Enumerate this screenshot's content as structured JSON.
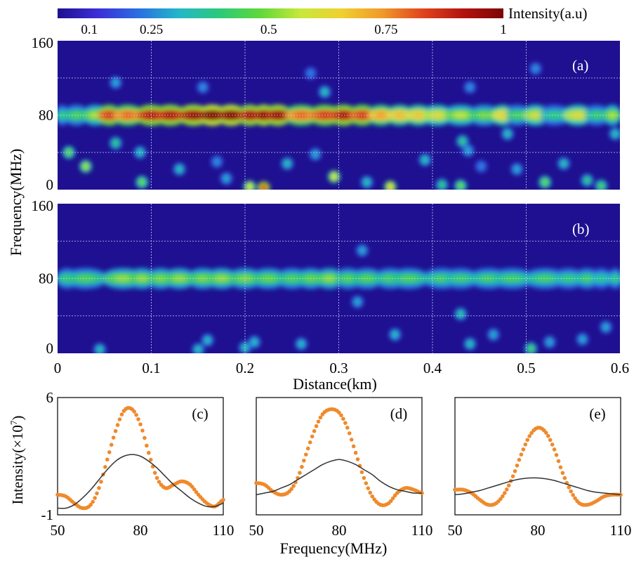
{
  "colors": {
    "heat_bg": "#1e1090",
    "heat_stops": [
      "#1e1090",
      "#3b2fd8",
      "#2a6fe0",
      "#22b8c8",
      "#2cc97a",
      "#5fd83a",
      "#c8e83a",
      "#f0d030",
      "#f09a2a",
      "#e0451e",
      "#b4120e",
      "#7a0606"
    ],
    "orange_dots": "#ef8a2c",
    "gray_line": "#333333",
    "grid": "#c9c9ff"
  },
  "colorbar": {
    "label": "Intensity(a.u)",
    "ticks": [
      "0.1",
      "0.25",
      "0.5",
      "0.75",
      "1"
    ],
    "tick_values": [
      0.1,
      0.25,
      0.5,
      0.75,
      1.0
    ]
  },
  "shared": {
    "heatmap_ylabel": "Frequency(MHz)",
    "heatmap_xlabel": "Distance(km)",
    "line_ylabel": "Intensity(×10",
    "line_ylabel_exp": "7",
    "line_ylabel_close": ")",
    "line_xlabel": "Frequency(MHz)"
  },
  "chart_data": [
    {
      "id": "a",
      "type": "heatmap",
      "panel_label": "(a)",
      "xlim": [
        0,
        0.6
      ],
      "ylim": [
        0,
        160
      ],
      "xticks": [
        "0",
        "0.1",
        "0.2",
        "0.3",
        "0.4",
        "0.5",
        "0.6"
      ],
      "yticks": [
        "0",
        "80",
        "160"
      ],
      "grid": true,
      "main_band": {
        "center_freq": 80,
        "segments": [
          {
            "x": 0.005,
            "level": 0.3
          },
          {
            "x": 0.02,
            "level": 0.35
          },
          {
            "x": 0.04,
            "level": 0.45
          },
          {
            "x": 0.055,
            "level": 0.78
          },
          {
            "x": 0.075,
            "level": 0.72
          },
          {
            "x": 0.1,
            "level": 0.85
          },
          {
            "x": 0.12,
            "level": 0.86
          },
          {
            "x": 0.145,
            "level": 0.9
          },
          {
            "x": 0.165,
            "level": 0.97
          },
          {
            "x": 0.185,
            "level": 0.95
          },
          {
            "x": 0.205,
            "level": 0.88
          },
          {
            "x": 0.22,
            "level": 0.92
          },
          {
            "x": 0.235,
            "level": 0.9
          },
          {
            "x": 0.26,
            "level": 0.72
          },
          {
            "x": 0.285,
            "level": 0.78
          },
          {
            "x": 0.305,
            "level": 0.86
          },
          {
            "x": 0.325,
            "level": 0.78
          },
          {
            "x": 0.345,
            "level": 0.65
          },
          {
            "x": 0.365,
            "level": 0.6
          },
          {
            "x": 0.385,
            "level": 0.58
          },
          {
            "x": 0.405,
            "level": 0.52
          },
          {
            "x": 0.43,
            "level": 0.46
          },
          {
            "x": 0.455,
            "level": 0.4
          },
          {
            "x": 0.475,
            "level": 0.55
          },
          {
            "x": 0.49,
            "level": 0.35
          },
          {
            "x": 0.51,
            "level": 0.5
          },
          {
            "x": 0.53,
            "level": 0.3
          },
          {
            "x": 0.555,
            "level": 0.52
          },
          {
            "x": 0.575,
            "level": 0.32
          },
          {
            "x": 0.592,
            "level": 0.45
          }
        ],
        "band_half_width": 6
      },
      "spots": [
        {
          "x": 0.012,
          "y": 40,
          "level": 0.45
        },
        {
          "x": 0.03,
          "y": 25,
          "level": 0.5
        },
        {
          "x": 0.062,
          "y": 50,
          "level": 0.35
        },
        {
          "x": 0.088,
          "y": 40,
          "level": 0.3
        },
        {
          "x": 0.09,
          "y": 8,
          "level": 0.45
        },
        {
          "x": 0.13,
          "y": 22,
          "level": 0.3
        },
        {
          "x": 0.17,
          "y": 30,
          "level": 0.22
        },
        {
          "x": 0.18,
          "y": 12,
          "level": 0.25
        },
        {
          "x": 0.205,
          "y": 3,
          "level": 0.55
        },
        {
          "x": 0.22,
          "y": 2,
          "level": 0.8
        },
        {
          "x": 0.245,
          "y": 28,
          "level": 0.3
        },
        {
          "x": 0.275,
          "y": 38,
          "level": 0.25
        },
        {
          "x": 0.295,
          "y": 14,
          "level": 0.55
        },
        {
          "x": 0.285,
          "y": 105,
          "level": 0.3
        },
        {
          "x": 0.33,
          "y": 8,
          "level": 0.3
        },
        {
          "x": 0.355,
          "y": 3,
          "level": 0.6
        },
        {
          "x": 0.392,
          "y": 32,
          "level": 0.3
        },
        {
          "x": 0.41,
          "y": 5,
          "level": 0.35
        },
        {
          "x": 0.432,
          "y": 52,
          "level": 0.35
        },
        {
          "x": 0.438,
          "y": 42,
          "level": 0.25
        },
        {
          "x": 0.452,
          "y": 25,
          "level": 0.2
        },
        {
          "x": 0.48,
          "y": 60,
          "level": 0.3
        },
        {
          "x": 0.49,
          "y": 22,
          "level": 0.25
        },
        {
          "x": 0.52,
          "y": 8,
          "level": 0.45
        },
        {
          "x": 0.54,
          "y": 28,
          "level": 0.3
        },
        {
          "x": 0.565,
          "y": 10,
          "level": 0.35
        },
        {
          "x": 0.58,
          "y": 4,
          "level": 0.4
        },
        {
          "x": 0.062,
          "y": 115,
          "level": 0.25
        },
        {
          "x": 0.155,
          "y": 110,
          "level": 0.22
        },
        {
          "x": 0.27,
          "y": 125,
          "level": 0.2
        },
        {
          "x": 0.44,
          "y": 110,
          "level": 0.22
        },
        {
          "x": 0.51,
          "y": 130,
          "level": 0.22
        },
        {
          "x": 0.43,
          "y": 4,
          "level": 0.45
        },
        {
          "x": 0.595,
          "y": 60,
          "level": 0.3
        }
      ]
    },
    {
      "id": "b",
      "type": "heatmap",
      "panel_label": "(b)",
      "xlim": [
        0,
        0.6
      ],
      "ylim": [
        0,
        160
      ],
      "xticks": [
        "0",
        "0.1",
        "0.2",
        "0.3",
        "0.4",
        "0.5",
        "0.6"
      ],
      "yticks": [
        "0",
        "80",
        "160"
      ],
      "grid": true,
      "main_band": {
        "center_freq": 80,
        "segments": [
          {
            "x": 0.01,
            "level": 0.32
          },
          {
            "x": 0.03,
            "level": 0.35
          },
          {
            "x": 0.07,
            "level": 0.42
          },
          {
            "x": 0.09,
            "level": 0.42
          },
          {
            "x": 0.11,
            "level": 0.4
          },
          {
            "x": 0.13,
            "level": 0.42
          },
          {
            "x": 0.155,
            "level": 0.4
          },
          {
            "x": 0.175,
            "level": 0.42
          },
          {
            "x": 0.2,
            "level": 0.4
          },
          {
            "x": 0.225,
            "level": 0.38
          },
          {
            "x": 0.25,
            "level": 0.35
          },
          {
            "x": 0.27,
            "level": 0.38
          },
          {
            "x": 0.29,
            "level": 0.42
          },
          {
            "x": 0.31,
            "level": 0.36
          },
          {
            "x": 0.33,
            "level": 0.36
          },
          {
            "x": 0.355,
            "level": 0.34
          },
          {
            "x": 0.375,
            "level": 0.35
          },
          {
            "x": 0.41,
            "level": 0.33
          },
          {
            "x": 0.43,
            "level": 0.32
          },
          {
            "x": 0.46,
            "level": 0.33
          },
          {
            "x": 0.485,
            "level": 0.33
          },
          {
            "x": 0.52,
            "level": 0.33
          },
          {
            "x": 0.545,
            "level": 0.3
          },
          {
            "x": 0.565,
            "level": 0.33
          },
          {
            "x": 0.58,
            "level": 0.28
          },
          {
            "x": 0.595,
            "level": 0.3
          }
        ],
        "band_half_width": 6
      },
      "spots": [
        {
          "x": 0.045,
          "y": 4,
          "level": 0.3
        },
        {
          "x": 0.15,
          "y": 4,
          "level": 0.3
        },
        {
          "x": 0.16,
          "y": 14,
          "level": 0.28
        },
        {
          "x": 0.2,
          "y": 6,
          "level": 0.3
        },
        {
          "x": 0.21,
          "y": 12,
          "level": 0.28
        },
        {
          "x": 0.26,
          "y": 10,
          "level": 0.28
        },
        {
          "x": 0.32,
          "y": 55,
          "level": 0.25
        },
        {
          "x": 0.36,
          "y": 20,
          "level": 0.28
        },
        {
          "x": 0.43,
          "y": 42,
          "level": 0.32
        },
        {
          "x": 0.44,
          "y": 10,
          "level": 0.3
        },
        {
          "x": 0.465,
          "y": 20,
          "level": 0.25
        },
        {
          "x": 0.505,
          "y": 5,
          "level": 0.4
        },
        {
          "x": 0.525,
          "y": 12,
          "level": 0.25
        },
        {
          "x": 0.56,
          "y": 15,
          "level": 0.25
        },
        {
          "x": 0.585,
          "y": 28,
          "level": 0.25
        },
        {
          "x": 0.325,
          "y": 110,
          "level": 0.25
        }
      ]
    },
    {
      "id": "c",
      "type": "line",
      "panel_label": "(c)",
      "xlim": [
        50,
        110
      ],
      "ylim": [
        -1,
        6
      ],
      "xticks": [
        "50",
        "80",
        "110"
      ],
      "yticks": [
        "-1",
        "6"
      ],
      "show_yticks": true,
      "series": [
        {
          "style": "dots",
          "x": [
            50,
            53,
            56,
            59,
            62,
            65,
            68,
            71,
            74,
            77,
            80,
            83,
            86,
            89,
            92,
            95,
            98,
            101,
            104,
            107,
            110
          ],
          "y": [
            0.2,
            0.1,
            -0.3,
            -0.6,
            -0.4,
            0.6,
            2.3,
            4.0,
            5.2,
            5.3,
            4.4,
            2.7,
            1.2,
            0.6,
            0.8,
            1.0,
            0.8,
            0.2,
            -0.3,
            -0.5,
            -0.1
          ]
        },
        {
          "style": "line",
          "x": [
            50,
            53,
            56,
            59,
            62,
            65,
            68,
            71,
            74,
            77,
            80,
            83,
            86,
            89,
            92,
            95,
            98,
            101,
            104,
            107,
            110
          ],
          "y": [
            -0.6,
            -0.6,
            -0.4,
            0.0,
            0.5,
            1.1,
            1.7,
            2.2,
            2.5,
            2.6,
            2.5,
            2.2,
            1.8,
            1.3,
            0.8,
            0.4,
            0.0,
            -0.3,
            -0.5,
            -0.5,
            -0.3
          ]
        }
      ]
    },
    {
      "id": "d",
      "type": "line",
      "panel_label": "(d)",
      "xlim": [
        50,
        110
      ],
      "ylim": [
        -1,
        6
      ],
      "xticks": [
        "50",
        "80",
        "110"
      ],
      "yticks": [],
      "show_yticks": false,
      "series": [
        {
          "style": "dots",
          "x": [
            50,
            53,
            56,
            59,
            62,
            65,
            68,
            71,
            74,
            77,
            80,
            83,
            86,
            89,
            92,
            95,
            98,
            101,
            104,
            107,
            110
          ],
          "y": [
            0.9,
            0.8,
            0.4,
            0.2,
            0.4,
            1.2,
            2.6,
            4.0,
            5.0,
            5.3,
            5.1,
            4.2,
            2.7,
            1.2,
            0.1,
            -0.4,
            -0.3,
            0.3,
            0.6,
            0.5,
            0.3
          ]
        },
        {
          "style": "line",
          "x": [
            50,
            53,
            56,
            59,
            62,
            65,
            68,
            71,
            74,
            77,
            80,
            83,
            86,
            89,
            92,
            95,
            98,
            101,
            104,
            107,
            110
          ],
          "y": [
            0.2,
            0.3,
            0.4,
            0.6,
            0.8,
            1.1,
            1.4,
            1.7,
            2.0,
            2.2,
            2.3,
            2.2,
            2.0,
            1.7,
            1.4,
            1.0,
            0.7,
            0.5,
            0.4,
            0.3,
            0.3
          ]
        }
      ]
    },
    {
      "id": "e",
      "type": "line",
      "panel_label": "(e)",
      "xlim": [
        50,
        110
      ],
      "ylim": [
        -1,
        6
      ],
      "xticks": [
        "50",
        "80",
        "110"
      ],
      "yticks": [],
      "show_yticks": false,
      "series": [
        {
          "style": "dots",
          "x": [
            50,
            53,
            56,
            59,
            62,
            65,
            68,
            71,
            74,
            77,
            80,
            83,
            86,
            89,
            92,
            95,
            98,
            101,
            104,
            107,
            110
          ],
          "y": [
            0.5,
            0.5,
            0.3,
            -0.1,
            -0.4,
            -0.3,
            0.3,
            1.3,
            2.6,
            3.7,
            4.2,
            3.9,
            2.9,
            1.5,
            0.4,
            -0.3,
            -0.4,
            -0.2,
            0.1,
            0.2,
            0.2
          ]
        },
        {
          "style": "line",
          "x": [
            50,
            53,
            56,
            59,
            62,
            65,
            68,
            71,
            74,
            77,
            80,
            83,
            86,
            89,
            92,
            95,
            98,
            101,
            104,
            107,
            110
          ],
          "y": [
            0.2,
            0.25,
            0.35,
            0.45,
            0.6,
            0.75,
            0.9,
            1.05,
            1.15,
            1.2,
            1.2,
            1.15,
            1.05,
            0.9,
            0.75,
            0.6,
            0.45,
            0.35,
            0.3,
            0.25,
            0.2
          ]
        }
      ]
    }
  ]
}
